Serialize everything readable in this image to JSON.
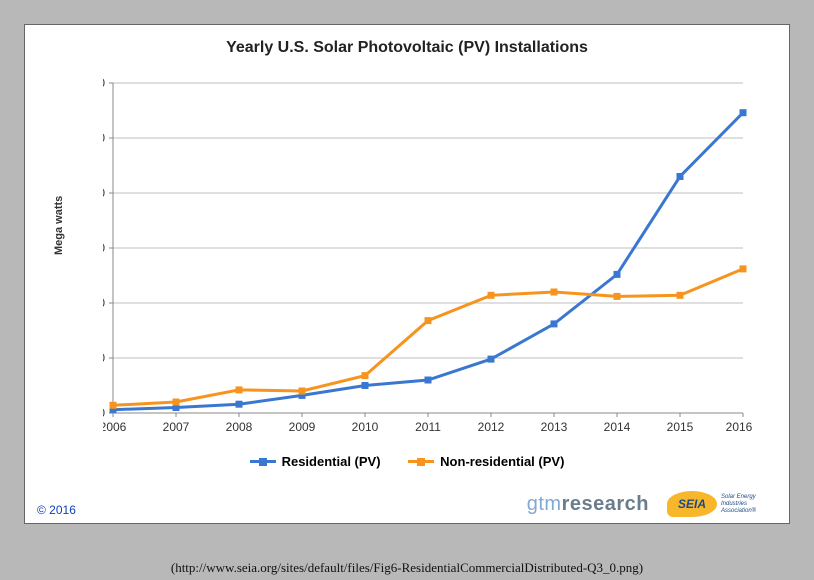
{
  "caption": "(http://www.seia.org/sites/default/files/Fig6-ResidentialCommercialDistributed-Q3_0.png)",
  "chart": {
    "type": "line",
    "title": "Yearly U.S. Solar Photovoltaic (PV) Installations",
    "y_axis_title": "Mega watts",
    "categories": [
      "2006",
      "2007",
      "2008",
      "2009",
      "2010",
      "2011",
      "2012",
      "2013",
      "2014",
      "2015",
      "2016E"
    ],
    "series": [
      {
        "name": "Residential (PV)",
        "color": "#3a77d0",
        "line_width": 3,
        "marker": "square",
        "marker_size": 7,
        "values": [
          30,
          50,
          80,
          160,
          250,
          300,
          490,
          810,
          1260,
          2150,
          2730
        ]
      },
      {
        "name": "Non-residential (PV)",
        "color": "#f7941d",
        "line_width": 3,
        "marker": "square",
        "marker_size": 7,
        "values": [
          70,
          100,
          210,
          200,
          340,
          840,
          1070,
          1100,
          1060,
          1070,
          1310
        ]
      }
    ],
    "ylim": [
      0,
      3000
    ],
    "ytick_step": 500,
    "grid_color": "#bfbfbf",
    "background_color": "#ffffff",
    "axis_color": "#888888",
    "tick_fontsize": 12,
    "title_fontsize": 16
  },
  "footer": {
    "copyright": "© 2016",
    "gtm_part1": "gtm",
    "gtm_part2": "research",
    "seia_badge": "SEIA",
    "seia_text": "Solar Energy Industries Association®"
  },
  "frame": {
    "outer_bg": "#b8b8b8",
    "panel_border": "#666666"
  }
}
